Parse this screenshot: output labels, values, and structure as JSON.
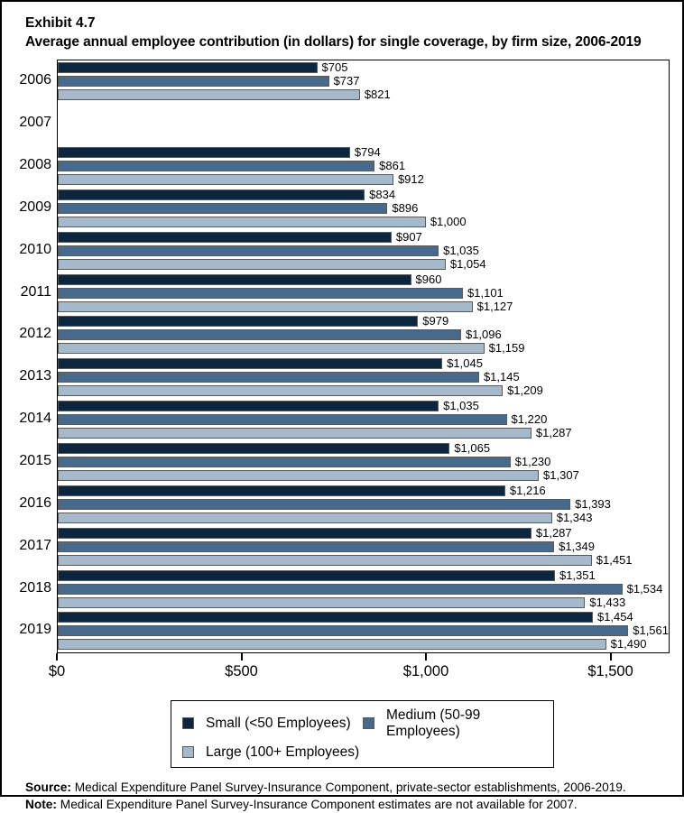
{
  "title": {
    "exhibit": "Exhibit 4.7",
    "heading": "Average annual employee contribution (in dollars) for single coverage, by firm size, 2006-2019"
  },
  "chart_data": {
    "type": "bar",
    "orientation": "horizontal",
    "categories": [
      "2006",
      "2007",
      "2008",
      "2009",
      "2010",
      "2011",
      "2012",
      "2013",
      "2014",
      "2015",
      "2016",
      "2017",
      "2018",
      "2019"
    ],
    "series": [
      {
        "name": "Small (<50 Employees)",
        "color": "#0C2640",
        "values": [
          705,
          null,
          794,
          834,
          907,
          960,
          979,
          1045,
          1035,
          1065,
          1216,
          1287,
          1351,
          1454
        ]
      },
      {
        "name": "Medium (50-99 Employees)",
        "color": "#46698C",
        "values": [
          737,
          null,
          861,
          896,
          1035,
          1101,
          1096,
          1145,
          1220,
          1230,
          1393,
          1349,
          1534,
          1561
        ]
      },
      {
        "name": "Large (100+ Employees)",
        "color": "#A5B9CB",
        "values": [
          821,
          null,
          912,
          1000,
          1054,
          1127,
          1159,
          1209,
          1287,
          1307,
          1343,
          1451,
          1433,
          1490
        ]
      }
    ],
    "value_label_prefix": "$",
    "xlabel": "",
    "ylabel": "",
    "axis_max": 1660,
    "x_ticks": [
      {
        "value": 0,
        "label": "$0"
      },
      {
        "value": 500,
        "label": "$500"
      },
      {
        "value": 1000,
        "label": "$1,000"
      },
      {
        "value": 1500,
        "label": "$1,500"
      }
    ],
    "grid": false,
    "legend_position": "bottom",
    "note_missing_year": "2007"
  },
  "footer": {
    "source_label": "Source:",
    "source_text": " Medical Expenditure Panel Survey-Insurance Component, private-sector establishments, 2006-2019.",
    "note_label": "Note:",
    "note_text": " Medical Expenditure Panel Survey-Insurance Component estimates are not available for 2007."
  }
}
